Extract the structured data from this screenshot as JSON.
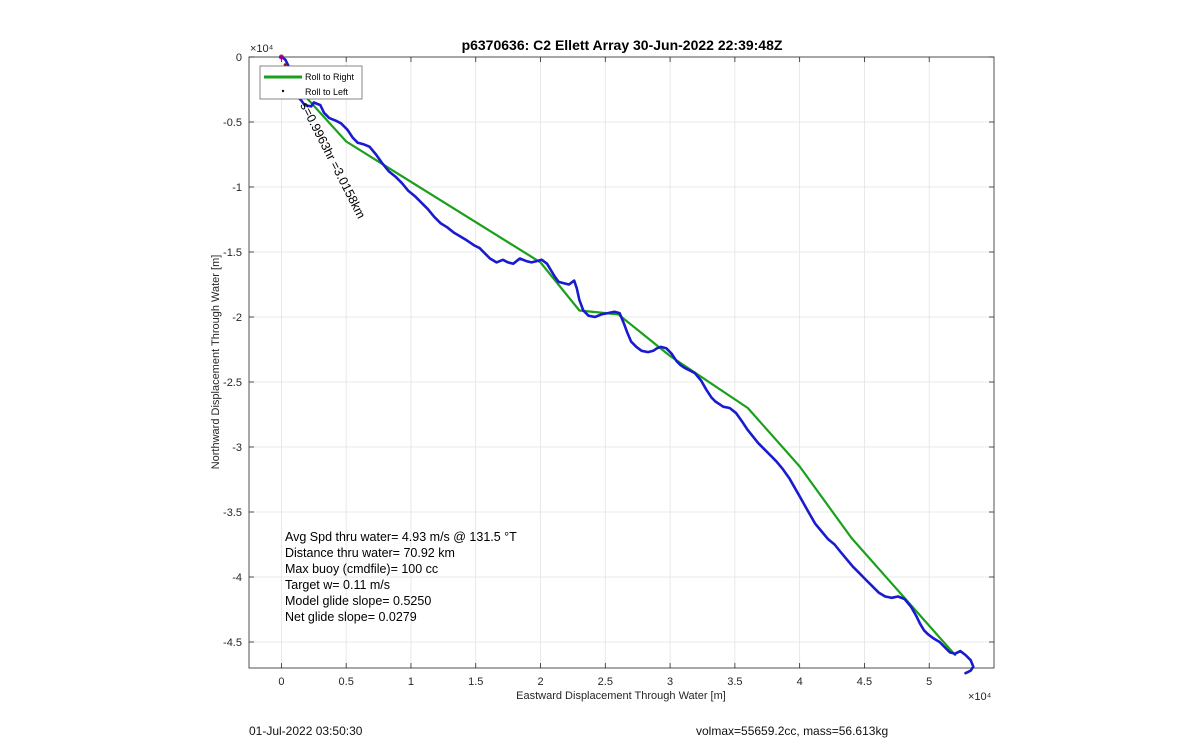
{
  "chart_data": {
    "type": "line",
    "title": "p6370636: C2 Ellett Array 30-Jun-2022 22:39:48Z",
    "xlabel": "Eastward Displacement Through Water [m]",
    "ylabel": "Northward Displacement Through Water [m]",
    "x_exponent_label": "×10⁴",
    "y_exponent_label": "×10⁴",
    "xlim": [
      -2500,
      55000
    ],
    "ylim": [
      -47000,
      0
    ],
    "xticks": [
      0,
      5000,
      10000,
      15000,
      20000,
      25000,
      30000,
      35000,
      40000,
      45000,
      50000
    ],
    "xtick_labels": [
      "0",
      "0.5",
      "1",
      "1.5",
      "2",
      "2.5",
      "3",
      "3.5",
      "4",
      "4.5",
      "5"
    ],
    "yticks": [
      0,
      -5000,
      -10000,
      -15000,
      -20000,
      -25000,
      -30000,
      -35000,
      -40000,
      -45000
    ],
    "ytick_labels": [
      "0",
      "-0.5",
      "-1",
      "-1.5",
      "-2",
      "-2.5",
      "-3",
      "-3.5",
      "-4",
      "-4.5"
    ],
    "grid": true,
    "legend_position": "top-left",
    "legend": [
      {
        "label": "Roll to Right",
        "color": "#1aa01a",
        "style": "line"
      },
      {
        "label": "Roll to Left",
        "color": "#111111",
        "style": "marker"
      }
    ],
    "series": [
      {
        "color": "#1aa01a",
        "x": [
          0,
          5000,
          20000,
          23000,
          26000,
          30000,
          36000,
          40000,
          44000,
          48000,
          52000
        ],
        "y": [
          -1000,
          -6500,
          -15800,
          -19500,
          -19800,
          -23000,
          -27000,
          -31500,
          -37000,
          -41500,
          -46000
        ]
      },
      {
        "color": "#1a1ad0",
        "x": [
          0,
          300,
          600,
          1000,
          1300,
          1000,
          1500,
          1800,
          2300,
          2500,
          3000,
          3300,
          3700,
          4200,
          4600,
          5100,
          5500,
          5900,
          6300,
          6800,
          7300,
          7800,
          8300,
          8800,
          9300,
          9800,
          10300,
          10800,
          11300,
          11800,
          12300,
          12800,
          13300,
          13800,
          14300,
          14600,
          14900,
          15300,
          15700,
          16100,
          16600,
          17100,
          17500,
          17900,
          18400,
          18900,
          19300,
          19700,
          20100,
          20500,
          20800,
          21100,
          21400,
          21800,
          22200,
          22600,
          22800,
          23000,
          23300,
          23700,
          24200,
          24700,
          25200,
          25700,
          26100,
          26400,
          26700,
          27000,
          27400,
          27800,
          28300,
          28700,
          29000,
          29300,
          29700,
          30100,
          30500,
          30800,
          31100,
          31500,
          31900,
          32400,
          32800,
          33200,
          33500,
          33800,
          34100,
          34600,
          35100,
          35600,
          36000,
          36400,
          36800,
          37200,
          37700,
          38200,
          38700,
          39200,
          39600,
          40000,
          40400,
          40800,
          41200,
          41700,
          42200,
          42700,
          43100,
          43600,
          44100,
          44600,
          45100,
          45600,
          46100,
          46600,
          47100,
          47600,
          48100,
          48600,
          49000,
          49300,
          49600,
          49900,
          50300,
          50800,
          51200,
          51600,
          52000,
          52400,
          52800,
          53200,
          53400,
          53200,
          53000,
          52800
        ],
        "y": [
          0,
          -200,
          -800,
          -1500,
          -2200,
          -2800,
          -3300,
          -3700,
          -3800,
          -3500,
          -3700,
          -4300,
          -4700,
          -4900,
          -5100,
          -5600,
          -6200,
          -6600,
          -6700,
          -6900,
          -7500,
          -8200,
          -8800,
          -9200,
          -9700,
          -10300,
          -10700,
          -11200,
          -11700,
          -12300,
          -12800,
          -13100,
          -13500,
          -13800,
          -14100,
          -14300,
          -14500,
          -14700,
          -15100,
          -15500,
          -15800,
          -15600,
          -15800,
          -15900,
          -15500,
          -15700,
          -15800,
          -15700,
          -15600,
          -15900,
          -16400,
          -16900,
          -17300,
          -17400,
          -17500,
          -17200,
          -17800,
          -18700,
          -19500,
          -19900,
          -20000,
          -19800,
          -19700,
          -19600,
          -19700,
          -20400,
          -21200,
          -21900,
          -22300,
          -22600,
          -22700,
          -22600,
          -22400,
          -22300,
          -22400,
          -22800,
          -23400,
          -23700,
          -23900,
          -24100,
          -24300,
          -24900,
          -25600,
          -26200,
          -26500,
          -26700,
          -26900,
          -27000,
          -27400,
          -28100,
          -28700,
          -29200,
          -29700,
          -30100,
          -30600,
          -31100,
          -31700,
          -32400,
          -33100,
          -33800,
          -34500,
          -35200,
          -35900,
          -36500,
          -37100,
          -37500,
          -38000,
          -38600,
          -39200,
          -39700,
          -40200,
          -40700,
          -41200,
          -41500,
          -41600,
          -41500,
          -41700,
          -42300,
          -43000,
          -43600,
          -44100,
          -44400,
          -44700,
          -45000,
          -45400,
          -45800,
          -45900,
          -45700,
          -46000,
          -46400,
          -46900,
          -47200,
          -47300,
          -47400
        ]
      }
    ],
    "annotations": {
      "rotated_label": "s=0.9963hr =3.0158km",
      "stats": [
        "Avg Spd thru water=  4.93 m/s @ 131.5 °T",
        "Distance thru water= 70.92 km",
        "Max buoy (cmdfile)= 100 cc",
        "Target w= 0.11 m/s",
        "Model glide slope= 0.5250",
        "Net glide slope= 0.0279"
      ]
    }
  },
  "footer": {
    "left": "01-Jul-2022 03:50:30",
    "right": "volmax=55659.2cc, mass=56.613kg"
  }
}
